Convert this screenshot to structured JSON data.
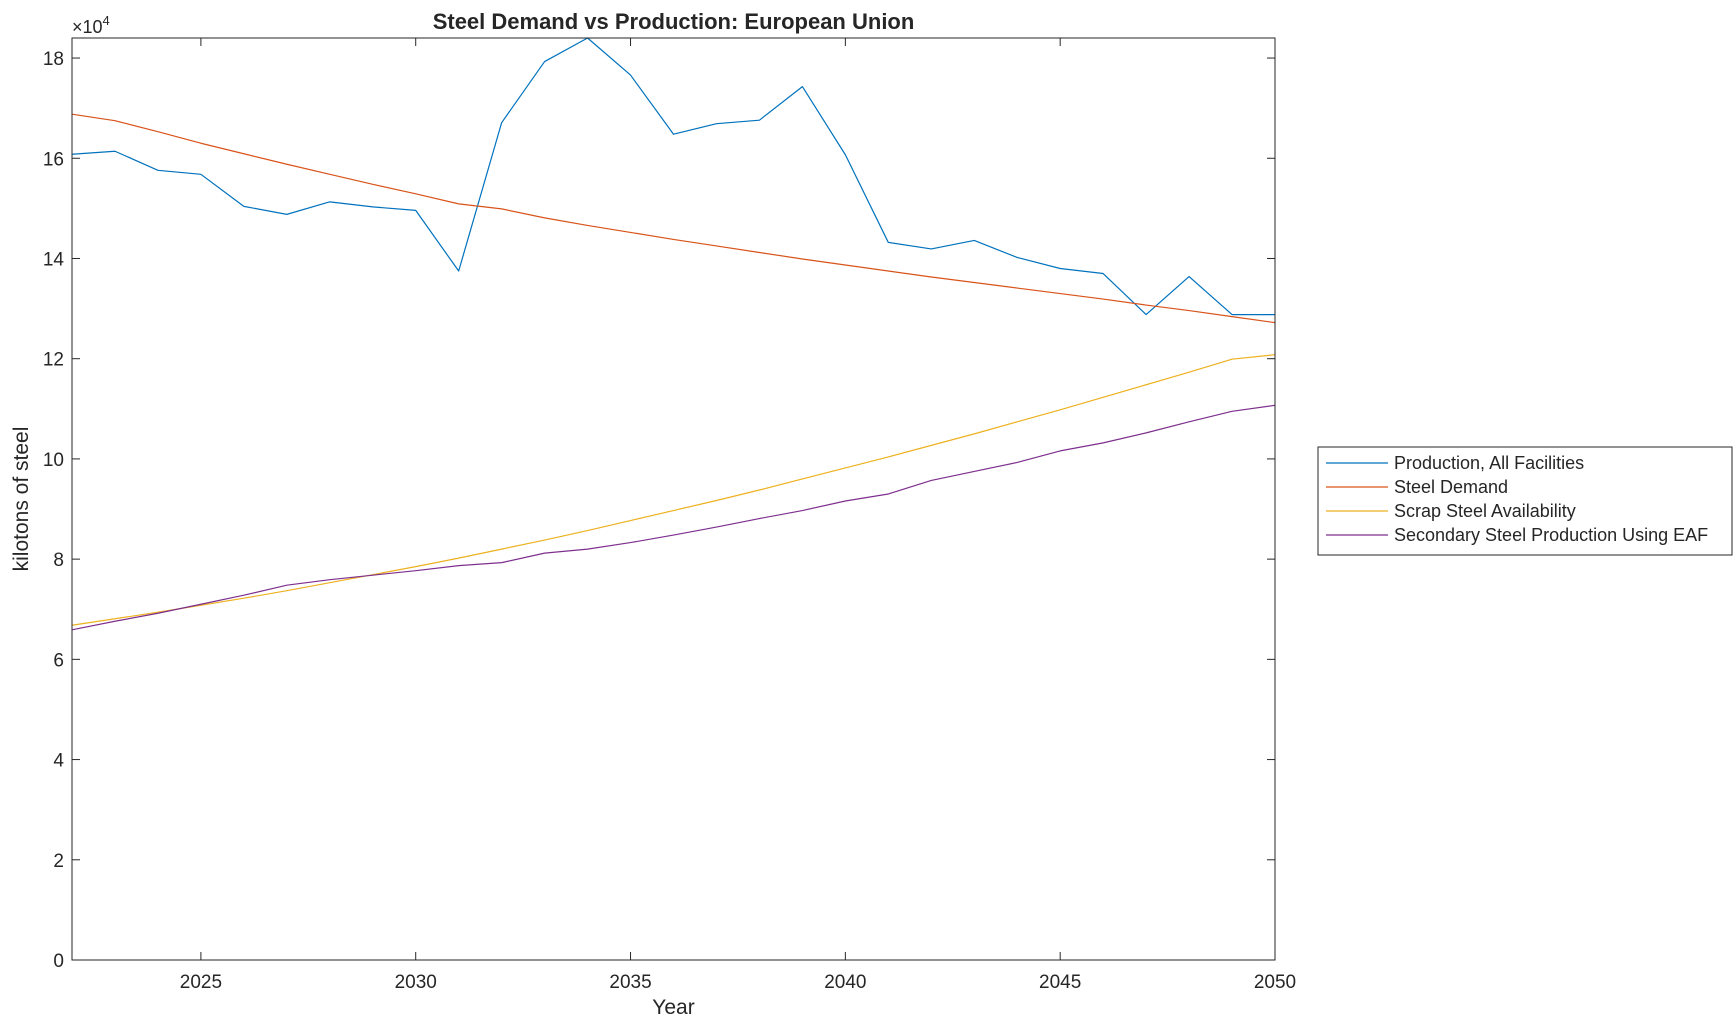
{
  "chart_data": {
    "type": "line",
    "title": "Steel Demand vs Production: European Union",
    "xlabel": "Year",
    "ylabel": "kilotons of steel",
    "y_exponent_label": "×10",
    "y_exponent_power": "4",
    "xlim": [
      2022,
      2050
    ],
    "ylim": [
      0,
      184000
    ],
    "x_ticks": [
      2025,
      2030,
      2035,
      2040,
      2045,
      2050
    ],
    "y_ticks": [
      0,
      20000,
      40000,
      60000,
      80000,
      100000,
      120000,
      140000,
      160000,
      180000
    ],
    "y_tick_labels": [
      "0",
      "2",
      "4",
      "6",
      "8",
      "10",
      "12",
      "14",
      "16",
      "18"
    ],
    "grid": false,
    "box": true,
    "legend_position": "outside-right",
    "x": [
      2022,
      2023,
      2024,
      2025,
      2026,
      2027,
      2028,
      2029,
      2030,
      2031,
      2032,
      2033,
      2034,
      2035,
      2036,
      2037,
      2038,
      2039,
      2040,
      2041,
      2042,
      2043,
      2044,
      2045,
      2046,
      2047,
      2048,
      2049,
      2050
    ],
    "series": [
      {
        "name": "Production, All Facilities",
        "color": "#0072BD",
        "values": [
          160800,
          161400,
          157600,
          156800,
          150400,
          148800,
          151300,
          150300,
          149600,
          137500,
          167100,
          179300,
          184000,
          176600,
          164800,
          166900,
          167600,
          174300,
          160700,
          143200,
          141900,
          143600,
          140200,
          138000,
          137000,
          128800,
          136400,
          128800,
          128800
        ]
      },
      {
        "name": "Steel Demand",
        "color": "#D95319",
        "values": [
          168800,
          167500,
          165300,
          163000,
          160900,
          158800,
          156800,
          154800,
          152900,
          150900,
          149900,
          148100,
          146600,
          145200,
          143800,
          142500,
          141200,
          139900,
          138700,
          137500,
          136300,
          135200,
          134100,
          133000,
          131900,
          130700,
          129600,
          128400,
          127200
        ]
      },
      {
        "name": "Scrap Steel Availability",
        "color": "#EDB120",
        "values": [
          66800,
          68100,
          69400,
          70800,
          72200,
          73700,
          75300,
          76900,
          78500,
          80200,
          82000,
          83800,
          85700,
          87700,
          89700,
          91700,
          93800,
          96000,
          98200,
          100400,
          102700,
          105000,
          107400,
          109800,
          112300,
          114800,
          117300,
          119900,
          120800
        ]
      },
      {
        "name": "Secondary Steel Production Using EAF",
        "color": "#7E2F8E",
        "values": [
          65900,
          67600,
          69200,
          71000,
          72800,
          74800,
          75900,
          76800,
          77700,
          78700,
          79300,
          81200,
          82000,
          83300,
          84800,
          86400,
          88100,
          89700,
          91600,
          93000,
          95700,
          97500,
          99300,
          101600,
          103200,
          105200,
          107400,
          109500,
          110700
        ]
      }
    ]
  }
}
